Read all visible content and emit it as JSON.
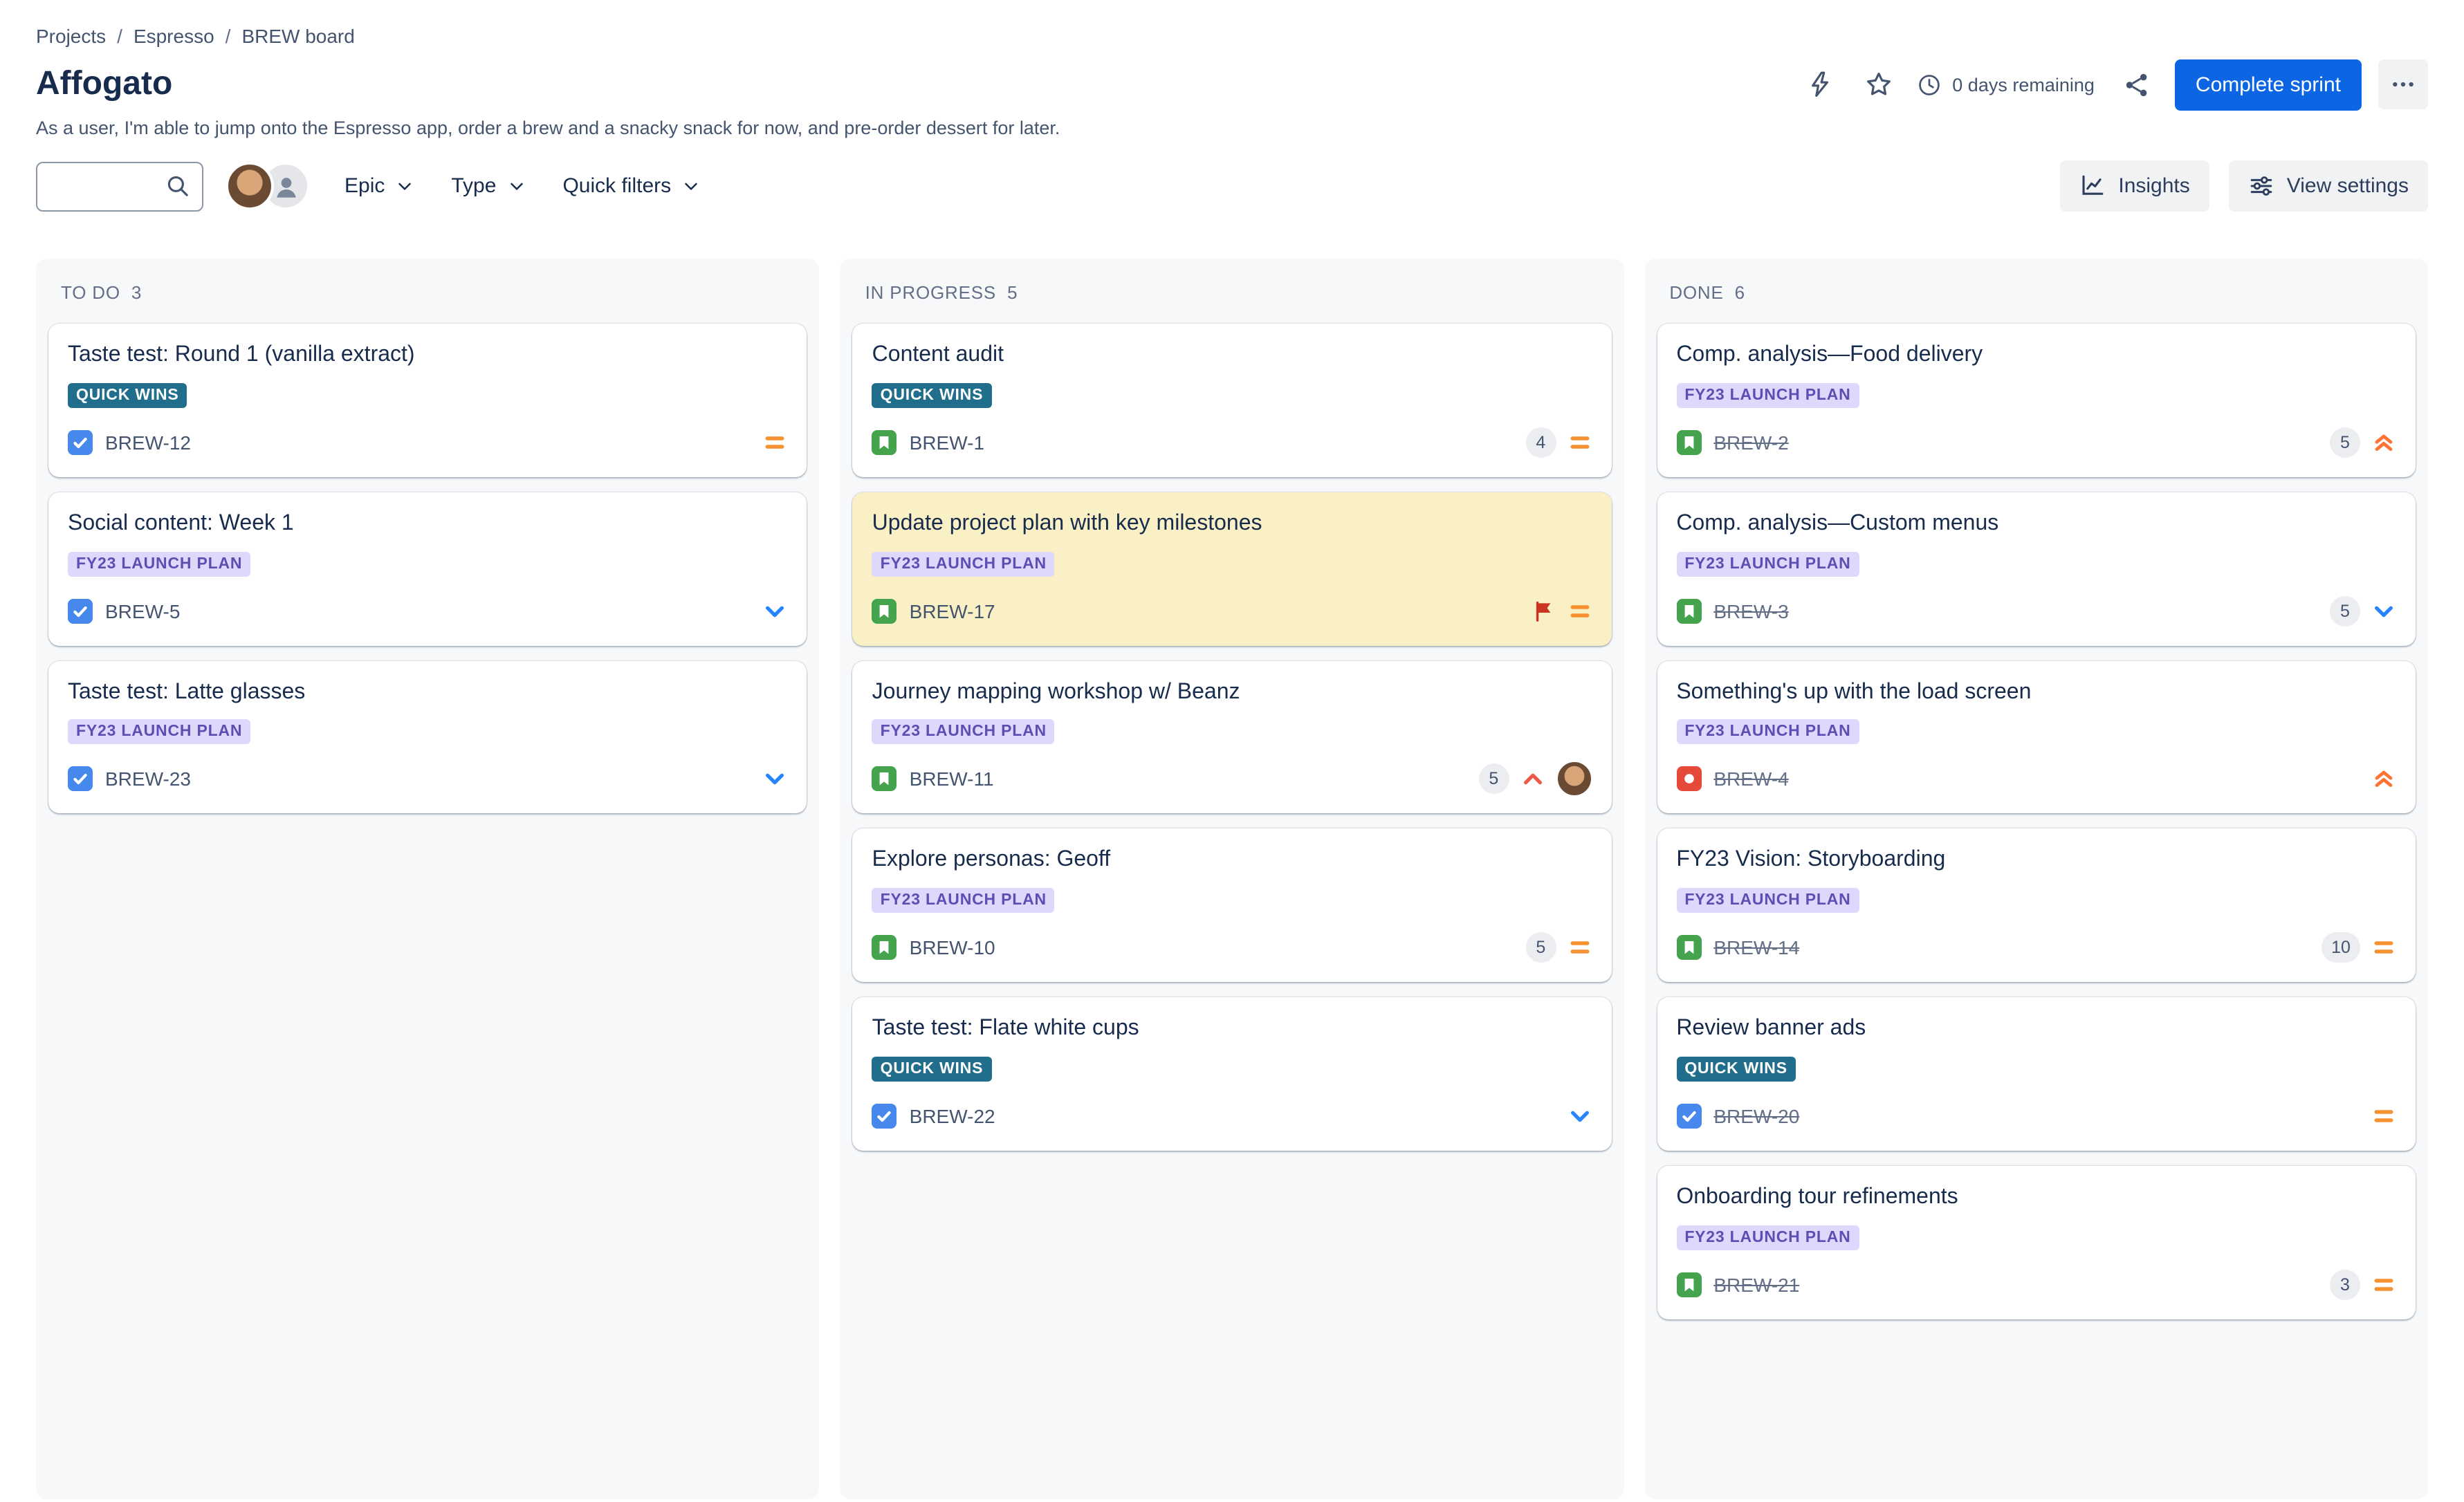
{
  "breadcrumb": {
    "separator": "/",
    "items": [
      "Projects",
      "Espresso",
      "BREW board"
    ]
  },
  "header": {
    "title": "Affogato",
    "description": "As a user, I'm able to jump onto the Espresso app, order a brew and a snacky snack for now, and pre-order dessert for later.",
    "days_remaining": "0 days remaining",
    "complete_sprint_label": "Complete sprint"
  },
  "toolbar": {
    "search": {
      "value": "",
      "placeholder": ""
    },
    "filters": [
      {
        "label": "Epic"
      },
      {
        "label": "Type"
      },
      {
        "label": "Quick filters"
      }
    ],
    "insights_label": "Insights",
    "view_settings_label": "View settings"
  },
  "icons": {
    "lightning-icon": "outline bolt",
    "star-icon": "outline star",
    "clock-icon": "outline clock",
    "share-icon": "share nodes",
    "more-icon": "horizontal ellipsis",
    "search-icon": "magnifier",
    "chevron-down-icon": "chevron down",
    "insights-icon": "trend line chart",
    "view-settings-icon": "slider controls",
    "task-icon": "blue square with white check",
    "story-icon": "green square with white bookmark",
    "bug-icon": "red square with white dot",
    "priority-medium-icon": "orange equals",
    "priority-low-icon": "blue chevron down",
    "priority-high-icon": "red chevron up",
    "priority-highest-icon": "orange double chevron up",
    "flag-icon": "red flag",
    "avatar-generic-icon": "gray person silhouette"
  },
  "colors": {
    "primary": "#0C66E4",
    "epic_teal_bg": "#206E8B",
    "epic_purple_bg": "#DFD8FD",
    "epic_purple_text": "#5E4DB2",
    "flagged_card_bg": "#FAF0C5",
    "column_bg": "#F7F8F9",
    "type_task": "#4688EC",
    "type_story": "#44A34C",
    "type_bug": "#E5493A",
    "priority_medium": "#F79232",
    "priority_low": "#2684FF",
    "priority_high": "#EE5A47",
    "priority_highest": "#FF7435",
    "flag": "#CA3521"
  },
  "board": {
    "columns": [
      {
        "id": "todo",
        "name": "TO DO",
        "count": "3",
        "cards": [
          {
            "title": "Taste test: Round 1 (vanilla extract)",
            "epic": "QUICK WINS",
            "epic_style": "teal",
            "key": "BREW-12",
            "type": "task",
            "priority": "medium"
          },
          {
            "title": "Social content: Week 1",
            "epic": "FY23 LAUNCH PLAN",
            "epic_style": "purple",
            "key": "BREW-5",
            "type": "task",
            "priority": "low"
          },
          {
            "title": "Taste test: Latte glasses",
            "epic": "FY23 LAUNCH PLAN",
            "epic_style": "purple",
            "key": "BREW-23",
            "type": "task",
            "priority": "low"
          }
        ]
      },
      {
        "id": "inprogress",
        "name": "IN PROGRESS",
        "count": "5",
        "cards": [
          {
            "title": "Content audit",
            "epic": "QUICK WINS",
            "epic_style": "teal",
            "key": "BREW-1",
            "type": "story",
            "estimate": "4",
            "priority": "medium"
          },
          {
            "title": "Update project plan with key milestones",
            "epic": "FY23 LAUNCH PLAN",
            "epic_style": "purple",
            "key": "BREW-17",
            "type": "story",
            "priority": "medium",
            "flagged": true
          },
          {
            "title": "Journey mapping workshop w/ Beanz",
            "epic": "FY23 LAUNCH PLAN",
            "epic_style": "purple",
            "key": "BREW-11",
            "type": "story",
            "estimate": "5",
            "priority": "high",
            "avatar": true
          },
          {
            "title": "Explore personas: Geoff",
            "epic": "FY23 LAUNCH PLAN",
            "epic_style": "purple",
            "key": "BREW-10",
            "type": "story",
            "estimate": "5",
            "priority": "medium"
          },
          {
            "title": "Taste test: Flate white cups",
            "epic": "QUICK WINS",
            "epic_style": "teal",
            "key": "BREW-22",
            "type": "task",
            "priority": "low"
          }
        ]
      },
      {
        "id": "done",
        "name": "DONE",
        "count": "6",
        "cards": [
          {
            "title": "Comp. analysis—Food delivery",
            "epic": "FY23 LAUNCH PLAN",
            "epic_style": "purple",
            "key": "BREW-2",
            "type": "story",
            "estimate": "5",
            "priority": "highest",
            "done": true
          },
          {
            "title": "Comp. analysis—Custom menus",
            "epic": "FY23 LAUNCH PLAN",
            "epic_style": "purple",
            "key": "BREW-3",
            "type": "story",
            "estimate": "5",
            "priority": "low",
            "done": true
          },
          {
            "title": "Something's up with the load screen",
            "epic": "FY23 LAUNCH PLAN",
            "epic_style": "purple",
            "key": "BREW-4",
            "type": "bug",
            "priority": "highest",
            "done": true
          },
          {
            "title": "FY23 Vision: Storyboarding",
            "epic": "FY23 LAUNCH PLAN",
            "epic_style": "purple",
            "key": "BREW-14",
            "type": "story",
            "estimate": "10",
            "priority": "medium",
            "done": true
          },
          {
            "title": "Review banner ads",
            "epic": "QUICK WINS",
            "epic_style": "teal",
            "key": "BREW-20",
            "type": "task",
            "priority": "medium",
            "done": true
          },
          {
            "title": "Onboarding tour refinements",
            "epic": "FY23 LAUNCH PLAN",
            "epic_style": "purple",
            "key": "BREW-21",
            "type": "story",
            "estimate": "3",
            "priority": "medium",
            "done": true
          }
        ]
      }
    ]
  }
}
